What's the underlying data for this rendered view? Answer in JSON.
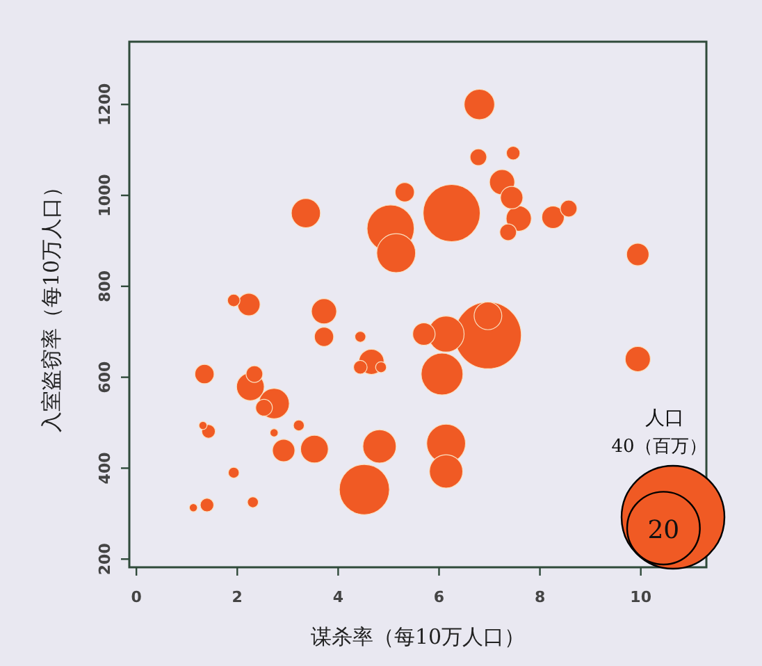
{
  "chart_data": {
    "type": "bubble",
    "xlabel": "谋杀率（每10万人口）",
    "ylabel": "入室盗窃率（每10万人口）",
    "legend_title": "人口",
    "xlim": [
      -0.14,
      11.3
    ],
    "ylim": [
      182,
      1338
    ],
    "xticks": [
      0,
      2,
      4,
      6,
      8,
      10
    ],
    "yticks": [
      200,
      400,
      600,
      800,
      1000,
      1200
    ],
    "size_legend": [
      {
        "value": 40,
        "label": "40（百万）"
      },
      {
        "value": 20,
        "label": "20"
      }
    ],
    "series": [
      {
        "color": "#f05a24",
        "x": [
          6.8,
          6.78,
          7.47,
          7.25,
          7.44,
          7.58,
          7.37,
          8.26,
          8.57,
          9.94,
          9.94,
          6.25,
          5.32,
          5.04,
          5.15,
          3.36,
          1.93,
          2.23,
          3.72,
          3.72,
          4.44,
          4.66,
          4.44,
          4.85,
          5.7,
          6.14,
          6.97,
          6.97,
          6.06,
          6.14,
          6.14,
          1.35,
          2.34,
          2.26,
          2.73,
          2.53,
          1.32,
          1.43,
          2.73,
          3.22,
          2.92,
          3.53,
          4.82,
          4.52,
          1.93,
          1.13,
          1.4,
          2.31
        ],
        "values": [
          1200,
          1084,
          1093,
          1029,
          995,
          949,
          919,
          952,
          971,
          870,
          640,
          961,
          1007,
          927,
          873,
          961,
          769,
          760,
          745,
          689,
          689,
          634,
          622,
          622,
          695,
          695,
          735,
          692,
          607,
          454,
          393,
          607,
          607,
          579,
          542,
          533,
          494,
          481,
          478,
          494,
          439,
          442,
          448,
          353,
          390,
          313,
          319,
          325
        ],
        "sizes": [
          3.5,
          1.05,
          0.7,
          2.4,
          1.9,
          2.4,
          1.05,
          1.9,
          1.05,
          1.9,
          2.4,
          12.3,
          1.4,
          8.4,
          5.7,
          3.2,
          0.6,
          1.9,
          2.4,
          1.4,
          0.45,
          2.4,
          0.7,
          0.45,
          1.9,
          4.9,
          2.9,
          16.8,
          6.6,
          5.7,
          4.2,
          1.4,
          1.05,
          2.9,
          3.5,
          1.05,
          0.25,
          0.7,
          0.25,
          0.45,
          1.9,
          2.9,
          4.2,
          9.5,
          0.45,
          0.25,
          0.7,
          0.45
        ]
      }
    ]
  }
}
